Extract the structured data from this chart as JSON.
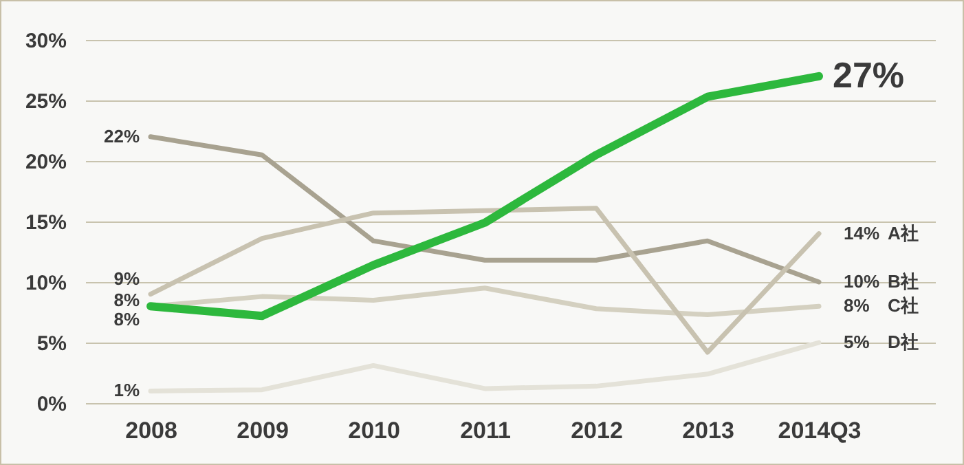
{
  "chart_data": {
    "type": "line",
    "categories": [
      "2008",
      "2009",
      "2010",
      "2011",
      "2012",
      "2013",
      "2014Q3"
    ],
    "series": [
      {
        "color": "#2db83d",
        "values": [
          8,
          7.2,
          11.4,
          14.9,
          20.5,
          25.3,
          27
        ],
        "value_labels": [
          "8%",
          null,
          null,
          null,
          null,
          null,
          "27%"
        ]
      },
      {
        "name": "A社",
        "color": "#c8c2b0",
        "values": [
          9,
          13.6,
          15.7,
          15.9,
          16.1,
          4.2,
          14
        ],
        "value_labels": [
          "9%",
          null,
          null,
          null,
          null,
          null,
          "14%"
        ]
      },
      {
        "name": "B社",
        "color": "#a8a290",
        "values": [
          22,
          20.5,
          13.4,
          11.8,
          11.8,
          13.4,
          10
        ],
        "value_labels": [
          "22%",
          null,
          null,
          null,
          null,
          null,
          "10%"
        ]
      },
      {
        "name": "C社",
        "color": "#d4d0c0",
        "values": [
          8,
          8.8,
          8.5,
          9.5,
          7.8,
          7.3,
          8
        ],
        "value_labels": [
          "8%",
          null,
          null,
          null,
          null,
          null,
          "8%"
        ]
      },
      {
        "name": "D社",
        "color": "#e4e2d8",
        "values": [
          1,
          1.1,
          3.1,
          1.2,
          1.4,
          2.4,
          5
        ],
        "value_labels": [
          "1%",
          null,
          null,
          null,
          null,
          null,
          "5%"
        ]
      }
    ],
    "ylim": [
      0,
      30
    ],
    "yticks": [
      {
        "value": 0,
        "label": "0%"
      },
      {
        "value": 5,
        "label": "5%"
      },
      {
        "value": 10,
        "label": "10%"
      },
      {
        "value": 15,
        "label": "15%"
      },
      {
        "value": 20,
        "label": "20%"
      },
      {
        "value": 25,
        "label": "25%"
      },
      {
        "value": 30,
        "label": "30%"
      }
    ],
    "grid": "y",
    "marker": "none",
    "line_style": "solid"
  }
}
